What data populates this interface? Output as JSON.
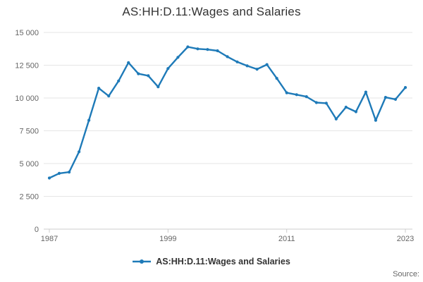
{
  "header": {
    "title": "AS:HH:D.11:Wages and Salaries"
  },
  "legend": {
    "label": "AS:HH:D.11:Wages and Salaries"
  },
  "footer": {
    "source_label": "Source:"
  },
  "colors": {
    "series": "#1e7ab8",
    "grid": "#e6e6e6",
    "axis": "#cccccc",
    "tick_text": "#666666",
    "title_text": "#333333"
  },
  "chart_data": {
    "type": "line",
    "title": "AS:HH:D.11:Wages and Salaries",
    "xlabel": "",
    "ylabel": "",
    "x": [
      1987,
      1988,
      1989,
      1990,
      1991,
      1992,
      1993,
      1994,
      1995,
      1996,
      1997,
      1998,
      1999,
      2000,
      2001,
      2002,
      2003,
      2004,
      2005,
      2006,
      2007,
      2008,
      2009,
      2010,
      2011,
      2012,
      2013,
      2014,
      2015,
      2016,
      2017,
      2018,
      2019,
      2020,
      2021,
      2022,
      2023
    ],
    "series": [
      {
        "name": "AS:HH:D.11:Wages and Salaries",
        "values": [
          3900,
          4250,
          4350,
          5900,
          8300,
          10750,
          10150,
          11300,
          12700,
          11850,
          11700,
          10850,
          12250,
          13100,
          13900,
          13750,
          13700,
          13600,
          13150,
          12750,
          12450,
          12200,
          12550,
          11500,
          10400,
          10250,
          10100,
          9650,
          9600,
          8400,
          9300,
          8950,
          10450,
          8300,
          10050,
          9900,
          10800
        ]
      }
    ],
    "ylim": [
      0,
      15000
    ],
    "xlim": [
      1987,
      2023
    ],
    "grid": true,
    "legend_position": "bottom",
    "y_ticks": [
      {
        "value": 0,
        "label": "0"
      },
      {
        "value": 2500,
        "label": "2 500"
      },
      {
        "value": 5000,
        "label": "5 000"
      },
      {
        "value": 7500,
        "label": "7 500"
      },
      {
        "value": 10000,
        "label": "10 000"
      },
      {
        "value": 12500,
        "label": "12 500"
      },
      {
        "value": 15000,
        "label": "15 000"
      }
    ],
    "x_ticks": [
      {
        "value": 1987,
        "label": "1987"
      },
      {
        "value": 1999,
        "label": "1999"
      },
      {
        "value": 2011,
        "label": "2011"
      },
      {
        "value": 2023,
        "label": "2023"
      }
    ],
    "source": "Source:"
  }
}
